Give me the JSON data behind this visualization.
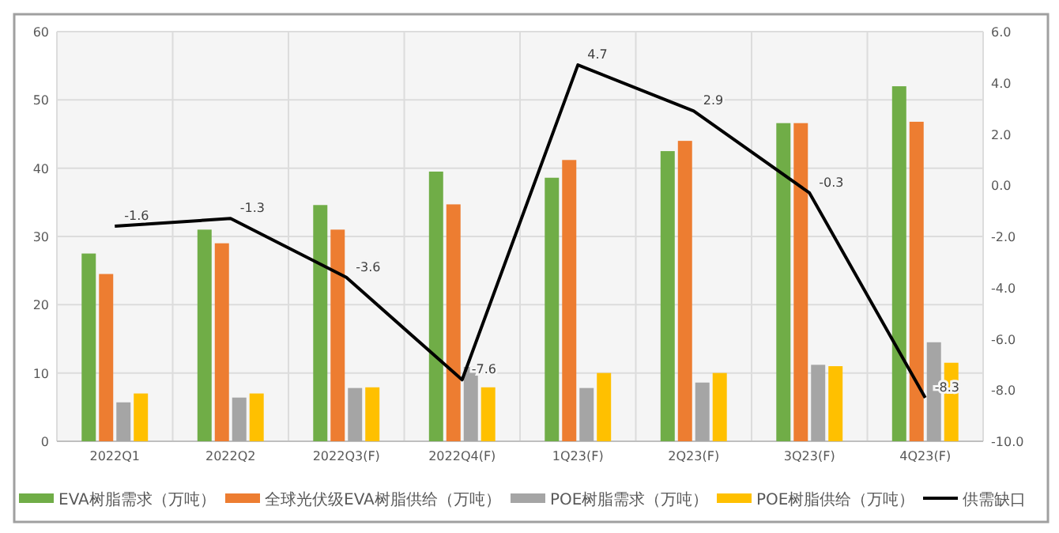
{
  "chart_data": {
    "type": "bar",
    "categories": [
      "2022Q1",
      "2022Q2",
      "2022Q3(F)",
      "2022Q4(F)",
      "1Q23(F)",
      "2Q23(F)",
      "3Q23(F)",
      "4Q23(F)"
    ],
    "series": [
      {
        "name": "EVA树脂需求（万吨）",
        "color": "#70ad47",
        "values": [
          27.5,
          31,
          34.6,
          39.5,
          38.6,
          42.5,
          46.6,
          52
        ]
      },
      {
        "name": "全球光伏级EVA树脂供给（万吨）",
        "color": "#ed7d31",
        "values": [
          24.5,
          29,
          31,
          34.7,
          41.2,
          44,
          46.6,
          46.8
        ]
      },
      {
        "name": "POE树脂需求（万吨）",
        "color": "#a5a5a5",
        "values": [
          5.7,
          6.4,
          7.8,
          10.9,
          7.8,
          8.6,
          11.2,
          14.5
        ]
      },
      {
        "name": "POE树脂供给（万吨）",
        "color": "#ffc000",
        "values": [
          7,
          7,
          7.9,
          7.9,
          10,
          10,
          11,
          11.5
        ]
      },
      {
        "name": "供需缺口",
        "type": "line",
        "axis": "y2",
        "color": "#000000",
        "values": [
          -1.6,
          -1.3,
          -3.6,
          -7.6,
          4.7,
          2.9,
          -0.3,
          -8.3
        ],
        "data_labels": true
      }
    ],
    "ylim": [
      0,
      60
    ],
    "yticks": [
      0,
      10,
      20,
      30,
      40,
      50,
      60
    ],
    "y2lim": [
      -10,
      6
    ],
    "y2ticks": [
      {
        "value": -10,
        "label": "-10.0"
      },
      {
        "value": -8,
        "label": "-8.0"
      },
      {
        "value": -6,
        "label": "-6.0"
      },
      {
        "value": -4,
        "label": "-4.0"
      },
      {
        "value": -2,
        "label": "-2.0"
      },
      {
        "value": 0,
        "label": "0.0"
      },
      {
        "value": 2,
        "label": "2.0"
      },
      {
        "value": 4,
        "label": "4.0"
      },
      {
        "value": 6,
        "label": "6.0"
      }
    ],
    "grid": true,
    "legend": "bottom",
    "marker": "none",
    "line_style": "solid"
  }
}
